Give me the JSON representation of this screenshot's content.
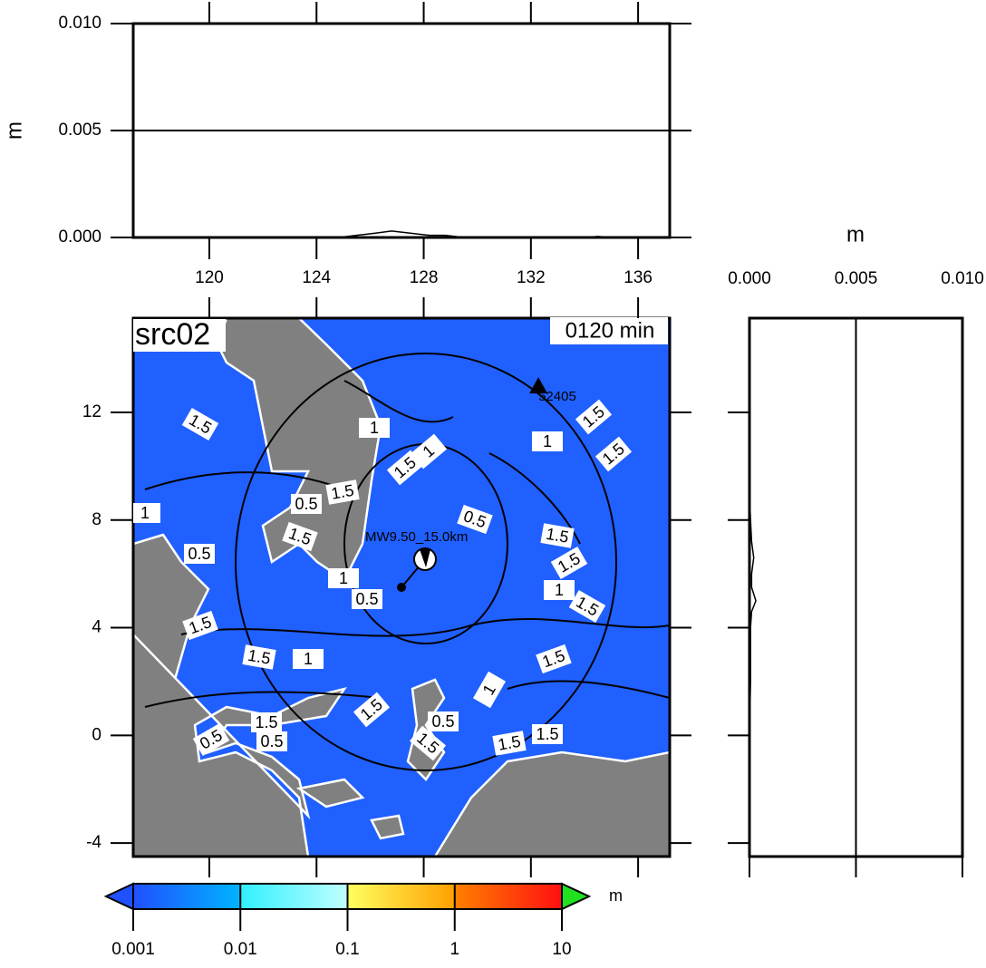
{
  "chart_data": [
    {
      "type": "line",
      "ylabel": "m",
      "x": [
        117.2,
        124.8,
        125.5,
        126.2,
        126.8,
        127.5,
        128.2,
        128.8,
        129.5,
        134.0,
        134.5,
        135.0,
        137.1
      ],
      "series": [
        {
          "color": "#000000",
          "values": [
            0,
            0,
            0.0001,
            0.0002,
            0.0003,
            0.0002,
            0.0001,
            0.0001,
            0,
            0,
            5e-05,
            0,
            0
          ]
        }
      ],
      "xlim": [
        117.16,
        137.18
      ],
      "xticks": [
        120,
        124,
        128,
        132,
        136
      ],
      "ylim": [
        0,
        0.01
      ],
      "yticks": [
        {
          "value": 0,
          "label": "0.000"
        },
        {
          "value": 0.005,
          "label": "0.005"
        },
        {
          "value": 0.01,
          "label": "0.010"
        }
      ],
      "grid": true
    },
    {
      "type": "map",
      "title": "src02",
      "time_label": "0120 min",
      "xlim": [
        117.16,
        137.18
      ],
      "xticks": [
        120,
        124,
        128,
        132,
        136
      ],
      "ylim": [
        -4.5,
        15.5
      ],
      "yticks": [
        {
          "value": -4,
          "label": "-4"
        },
        0,
        4,
        8,
        12
      ],
      "epicenter": {
        "label": "MW9.50_15.0km",
        "lon": 127.17,
        "lat": 5.5
      },
      "station": {
        "label": "52405",
        "lon": 132.28,
        "lat": 12.97
      },
      "contour_labels": [
        1.5,
        1,
        1.5,
        1,
        0.5,
        1.5,
        1,
        1.5,
        0.5,
        1,
        0.5,
        0.5,
        1.5,
        1.5,
        1,
        1.5,
        1.5,
        1,
        1.5,
        1.5,
        1.5,
        1,
        1.5,
        1,
        1.5,
        1.5,
        0.5,
        0.5,
        1.5,
        1.5,
        0.5,
        1.5
      ],
      "land_color": "#808080",
      "sea_color": "#2060ff"
    },
    {
      "type": "line",
      "orientation": "vertical",
      "xlabel": "m",
      "y": [
        15.5,
        9.0,
        8.0,
        7.2,
        6.6,
        6.0,
        5.5,
        5.0,
        4.6,
        4.0,
        2.0,
        0,
        -4.5
      ],
      "series": [
        {
          "color": "#000000",
          "values": [
            0,
            0,
            5e-05,
            0.0001,
            0.0002,
            0.0001,
            0.0001,
            0.0003,
            0.0001,
            5e-05,
            5e-05,
            0,
            0
          ]
        }
      ],
      "xlim": [
        0,
        0.01
      ],
      "xticks": [
        {
          "value": 0,
          "label": "0.000"
        },
        {
          "value": 0.005,
          "label": "0.005"
        },
        {
          "value": 0.01,
          "label": "0.010"
        }
      ],
      "ylim": [
        -4.5,
        15.5
      ],
      "yticks": [
        -4,
        0,
        4,
        8,
        12
      ],
      "grid": true
    },
    {
      "type": "colorbar",
      "unit": "m",
      "scale": "log",
      "ticks": [
        0.001,
        0.01,
        0.1,
        1,
        10
      ],
      "colors": [
        [
          "#2050ff",
          "#00b4ff"
        ],
        [
          "#30f0ff",
          "#c0ffff"
        ],
        [
          "#ffff60",
          "#ffa000"
        ],
        [
          "#ff8000",
          "#ff1010"
        ]
      ],
      "under_color": "#2050ff",
      "over_color": "#20e020"
    }
  ]
}
